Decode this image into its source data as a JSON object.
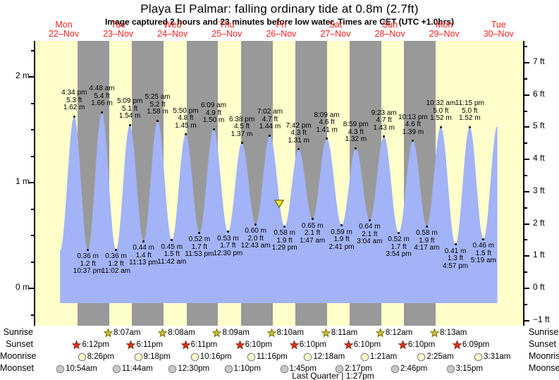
{
  "title": "Playa El Palmar: falling  ordinary tide at 0.8m (2.7ft)",
  "subtitle": "Image captured 2 hours and 23 minutes before low water. Times are CET (UTC +1.0hrs)",
  "colors": {
    "day_bg": "#ffffcc",
    "night_bg": "#999999",
    "tide_fill": "#a2b3f7",
    "day_label_red": "#fb2222",
    "sunrise_star_fill": "#cdc32c",
    "sunrise_star_stroke": "#6e6a00",
    "sunset_star_fill": "#e63214",
    "sunset_star_stroke": "#7e1a00",
    "moonrise_circle_fill": "#ffffd0",
    "moonset_circle_fill": "#c9c9c9",
    "moon_circle_stroke": "#8a8a8a",
    "marker_fill": "#ebe838",
    "marker_stroke": "#6b6b00"
  },
  "chart_data": {
    "type": "area",
    "title": "Playa El Palmar: falling  ordinary tide at 0.8m (2.7ft)",
    "x_days": [
      {
        "dow": "Mon",
        "date": "22–Nov"
      },
      {
        "dow": "Tue",
        "date": "23–Nov"
      },
      {
        "dow": "Wed",
        "date": "24–Nov"
      },
      {
        "dow": "Thu",
        "date": "25–Nov"
      },
      {
        "dow": "Fri",
        "date": "26–Nov"
      },
      {
        "dow": "Sat",
        "date": "27–Nov"
      },
      {
        "dow": "Sun",
        "date": "28–Nov"
      },
      {
        "dow": "Mon",
        "date": "29–Nov"
      },
      {
        "dow": "Tue",
        "date": "30–Nov"
      }
    ],
    "y_axis_left": {
      "unit": "m",
      "labels": [
        {
          "v": 0,
          "text": "0 m"
        },
        {
          "v": 1,
          "text": "1 m"
        },
        {
          "v": 2,
          "text": "2 m"
        }
      ],
      "minor_step": 0.25
    },
    "y_axis_right": {
      "unit": "ft",
      "labels": [
        {
          "v": -1,
          "text": "−1 ft"
        },
        {
          "v": 0,
          "text": "0 ft"
        },
        {
          "v": 1,
          "text": "1 ft"
        },
        {
          "v": 2,
          "text": "2 ft"
        },
        {
          "v": 3,
          "text": "3 ft"
        },
        {
          "v": 4,
          "text": "4 ft"
        },
        {
          "v": 5,
          "text": "5 ft"
        },
        {
          "v": 6,
          "text": "6 ft"
        },
        {
          "v": 7,
          "text": "7 ft"
        }
      ],
      "minor_step": 0.5
    },
    "tides": [
      {
        "type": "high",
        "time": "4:34 pm",
        "ft": "5.3 ft",
        "m": "1.62 m",
        "t": 16.57,
        "h": 1.62
      },
      {
        "type": "low",
        "time": "10:37 pm",
        "ft": "1.2 ft",
        "m": "0.36 m",
        "t": 22.62,
        "h": 0.36
      },
      {
        "type": "high",
        "time": "4:48 am",
        "ft": "5.4 ft",
        "m": "1.66 m",
        "t": 28.8,
        "h": 1.66
      },
      {
        "type": "low",
        "time": "11:02 am",
        "ft": "1.2 ft",
        "m": "0.36 m",
        "t": 35.03,
        "h": 0.36
      },
      {
        "type": "high",
        "time": "5:09 pm",
        "ft": "5.1 ft",
        "m": "1.54 m",
        "t": 41.15,
        "h": 1.54
      },
      {
        "type": "low",
        "time": "11:13 pm",
        "ft": "1.4 ft",
        "m": "0.44 m",
        "t": 47.22,
        "h": 0.44
      },
      {
        "type": "high",
        "time": "5:25 am",
        "ft": "5.2 ft",
        "m": "1.58 m",
        "t": 53.42,
        "h": 1.58
      },
      {
        "type": "low",
        "time": "11:42 am",
        "ft": "1.5 ft",
        "m": "0.45 m",
        "t": 59.7,
        "h": 0.45
      },
      {
        "type": "high",
        "time": "5:50 pm",
        "ft": "4.8 ft",
        "m": "1.45 m",
        "t": 65.83,
        "h": 1.45
      },
      {
        "type": "low",
        "time": "11:53 pm",
        "ft": "1.7 ft",
        "m": "0.52 m",
        "t": 71.88,
        "h": 0.52
      },
      {
        "type": "high",
        "time": "6:09 am",
        "ft": "4.9 ft",
        "m": "1.50 m",
        "t": 78.15,
        "h": 1.5
      },
      {
        "type": "low",
        "time": "12:30 pm",
        "ft": "1.7 ft",
        "m": "0.53 m",
        "t": 84.5,
        "h": 0.53
      },
      {
        "type": "high",
        "time": "6:38 pm",
        "ft": "4.5 ft",
        "m": "1.37 m",
        "t": 90.63,
        "h": 1.37
      },
      {
        "type": "low",
        "time": "12:43 am",
        "ft": "2.0 ft",
        "m": "0.60 m",
        "t": 96.72,
        "h": 0.6
      },
      {
        "type": "high",
        "time": "7:02 am",
        "ft": "4.7 ft",
        "m": "1.44 m",
        "t": 103.03,
        "h": 1.44
      },
      {
        "type": "low",
        "time": "1:29 pm",
        "ft": "1.9 ft",
        "m": "0.58 m",
        "t": 109.48,
        "h": 0.58
      },
      {
        "type": "high",
        "time": "7:42 pm",
        "ft": "4.3 ft",
        "m": "1.31 m",
        "t": 115.7,
        "h": 1.31
      },
      {
        "type": "low",
        "time": "1:47 am",
        "ft": "2.1 ft",
        "m": "0.65 m",
        "t": 121.78,
        "h": 0.65
      },
      {
        "type": "high",
        "time": "8:09 am",
        "ft": "4.6 ft",
        "m": "1.41 m",
        "t": 128.15,
        "h": 1.41
      },
      {
        "type": "low",
        "time": "2:41 pm",
        "ft": "1.9 ft",
        "m": "0.59 m",
        "t": 134.68,
        "h": 0.59
      },
      {
        "type": "high",
        "time": "8:59 pm",
        "ft": "4.3 ft",
        "m": "1.32 m",
        "t": 140.98,
        "h": 1.32
      },
      {
        "type": "low",
        "time": "3:04 am",
        "ft": "2.1 ft",
        "m": "0.64 m",
        "t": 147.07,
        "h": 0.64
      },
      {
        "type": "high",
        "time": "9:23 am",
        "ft": "4.7 ft",
        "m": "1.43 m",
        "t": 153.38,
        "h": 1.43
      },
      {
        "type": "low",
        "time": "3:54 pm",
        "ft": "1.7 ft",
        "m": "0.52 m",
        "t": 159.9,
        "h": 0.52
      },
      {
        "type": "high",
        "time": "10:13 pm",
        "ft": "4.6 ft",
        "m": "1.39 m",
        "t": 166.22,
        "h": 1.39
      },
      {
        "type": "low",
        "time": "4:17 am",
        "ft": "1.9 ft",
        "m": "0.58 m",
        "t": 172.28,
        "h": 0.58
      },
      {
        "type": "high",
        "time": "10:32 am",
        "ft": "5.0 ft",
        "m": "1.52 m",
        "t": 178.53,
        "h": 1.52
      },
      {
        "type": "low",
        "time": "4:57 pm",
        "ft": "1.3 ft",
        "m": "0.41 m",
        "t": 184.95,
        "h": 0.41
      },
      {
        "type": "high",
        "time": "11:15 pm",
        "ft": "5.0 ft",
        "m": "1.52 m",
        "t": 191.25,
        "h": 1.52
      },
      {
        "type": "low",
        "time": "5:19 am",
        "ft": "1.5 ft",
        "m": "0.46 m",
        "t": 197.32,
        "h": 0.46
      }
    ],
    "curve_edges": {
      "start": {
        "t": 10.33,
        "h": 0.35
      },
      "end": {
        "t": 203.5,
        "h": 1.53
      }
    },
    "current_marker": {
      "t": 107.1,
      "height_m": 0.8
    }
  },
  "astro": {
    "rows": [
      {
        "label": "Sunrise",
        "icon": "sunrise-star-icon",
        "entries": [
          {
            "day": 1,
            "time": "8:07am"
          },
          {
            "day": 2,
            "time": "8:08am"
          },
          {
            "day": 3,
            "time": "8:09am"
          },
          {
            "day": 4,
            "time": "8:10am"
          },
          {
            "day": 5,
            "time": "8:11am"
          },
          {
            "day": 6,
            "time": "8:12am"
          },
          {
            "day": 7,
            "time": "8:13am"
          }
        ]
      },
      {
        "label": "Sunset",
        "icon": "sunset-star-icon",
        "entries": [
          {
            "day": 0,
            "time": "6:12pm"
          },
          {
            "day": 1,
            "time": "6:11pm"
          },
          {
            "day": 2,
            "time": "6:11pm"
          },
          {
            "day": 3,
            "time": "6:10pm"
          },
          {
            "day": 4,
            "time": "6:10pm"
          },
          {
            "day": 5,
            "time": "6:10pm"
          },
          {
            "day": 6,
            "time": "6:10pm"
          },
          {
            "day": 7,
            "time": "6:09pm"
          }
        ]
      },
      {
        "label": "Moonrise",
        "icon": "moonrise-circle-icon",
        "entries": [
          {
            "day": 0,
            "time": "8:26pm"
          },
          {
            "day": 1,
            "time": "9:18pm"
          },
          {
            "day": 2,
            "time": "10:16pm"
          },
          {
            "day": 3,
            "time": "11:16pm"
          },
          {
            "day": 5,
            "time": "12:18am"
          },
          {
            "day": 6,
            "time": "1:21am"
          },
          {
            "day": 7,
            "time": "2:25am"
          },
          {
            "day": 8,
            "time": "3:31am"
          }
        ]
      },
      {
        "label": "Moonset",
        "icon": "moonset-circle-icon",
        "entries": [
          {
            "day": 0,
            "time": "10:54am"
          },
          {
            "day": 1,
            "time": "11:44am"
          },
          {
            "day": 2,
            "time": "12:30pm"
          },
          {
            "day": 3,
            "time": "1:10pm"
          },
          {
            "day": 4,
            "time": "1:45pm"
          },
          {
            "day": 5,
            "time": "2:17pm"
          },
          {
            "day": 6,
            "time": "2:46pm"
          },
          {
            "day": 7,
            "time": "3:15pm"
          }
        ]
      }
    ],
    "footer": "Last Quarter | 1:27pm"
  }
}
